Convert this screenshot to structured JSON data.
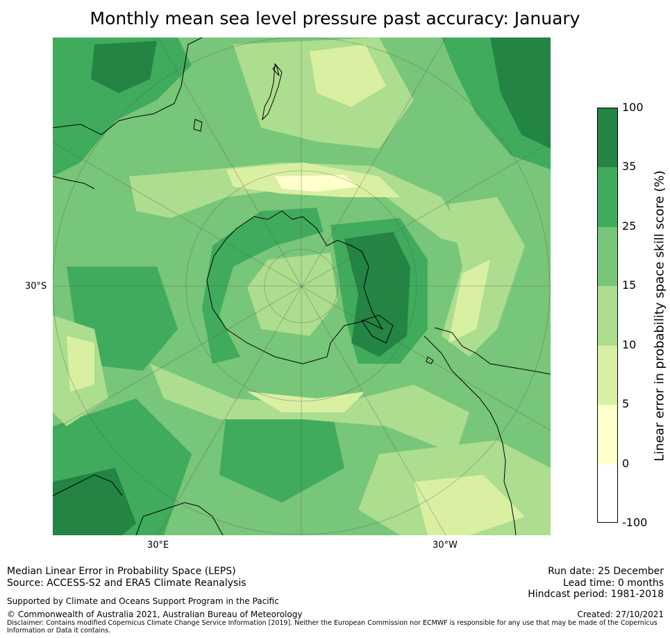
{
  "title": "Monthly mean sea level pressure past accuracy: January",
  "map": {
    "projection": "south-polar-stereographic",
    "features": [
      "Antarctica",
      "Australia",
      "New Zealand",
      "South America",
      "Africa"
    ],
    "lat_labels": [
      "30°S"
    ],
    "lon_labels": [
      "30°E",
      "30°W"
    ]
  },
  "colorbar": {
    "label": "Linear error in probability space skill score (%)",
    "ticks": [
      "100",
      "35",
      "25",
      "15",
      "10",
      "5",
      "0",
      "-100"
    ],
    "bins": [
      {
        "from": 35,
        "to": 100,
        "color": "#238443"
      },
      {
        "from": 25,
        "to": 35,
        "color": "#41ab5d"
      },
      {
        "from": 15,
        "to": 25,
        "color": "#78c679"
      },
      {
        "from": 10,
        "to": 15,
        "color": "#addd8e"
      },
      {
        "from": 5,
        "to": 10,
        "color": "#d9f0a3"
      },
      {
        "from": 0,
        "to": 5,
        "color": "#ffffcc"
      },
      {
        "from": -100,
        "to": 0,
        "color": "#ffffff"
      }
    ]
  },
  "footer": {
    "line1": "Median Linear Error in Probability Space (LEPS)",
    "line2": "Source: ACCESS-S2 and ERA5 Climate Reanalysis",
    "supported": "Supported by Climate and Oceans Support Program in the Pacific",
    "copyright": "© Commonwealth of Australia 2021, Australian Bureau of Meteorology",
    "disclaimer1": "Disclaimer: Contains modified Copernicus Climate Change Service Information [2019]. Neither the European Commission nor ECMWF is responsible for any use that may be made of the Copernicus",
    "disclaimer2": "Information or Data it contains.",
    "run_date": "Run date: 25 December",
    "lead_time": "Lead time: 0 months",
    "hindcast": "Hindcast period: 1981-2018",
    "created": "Created: 27/10/2021"
  }
}
